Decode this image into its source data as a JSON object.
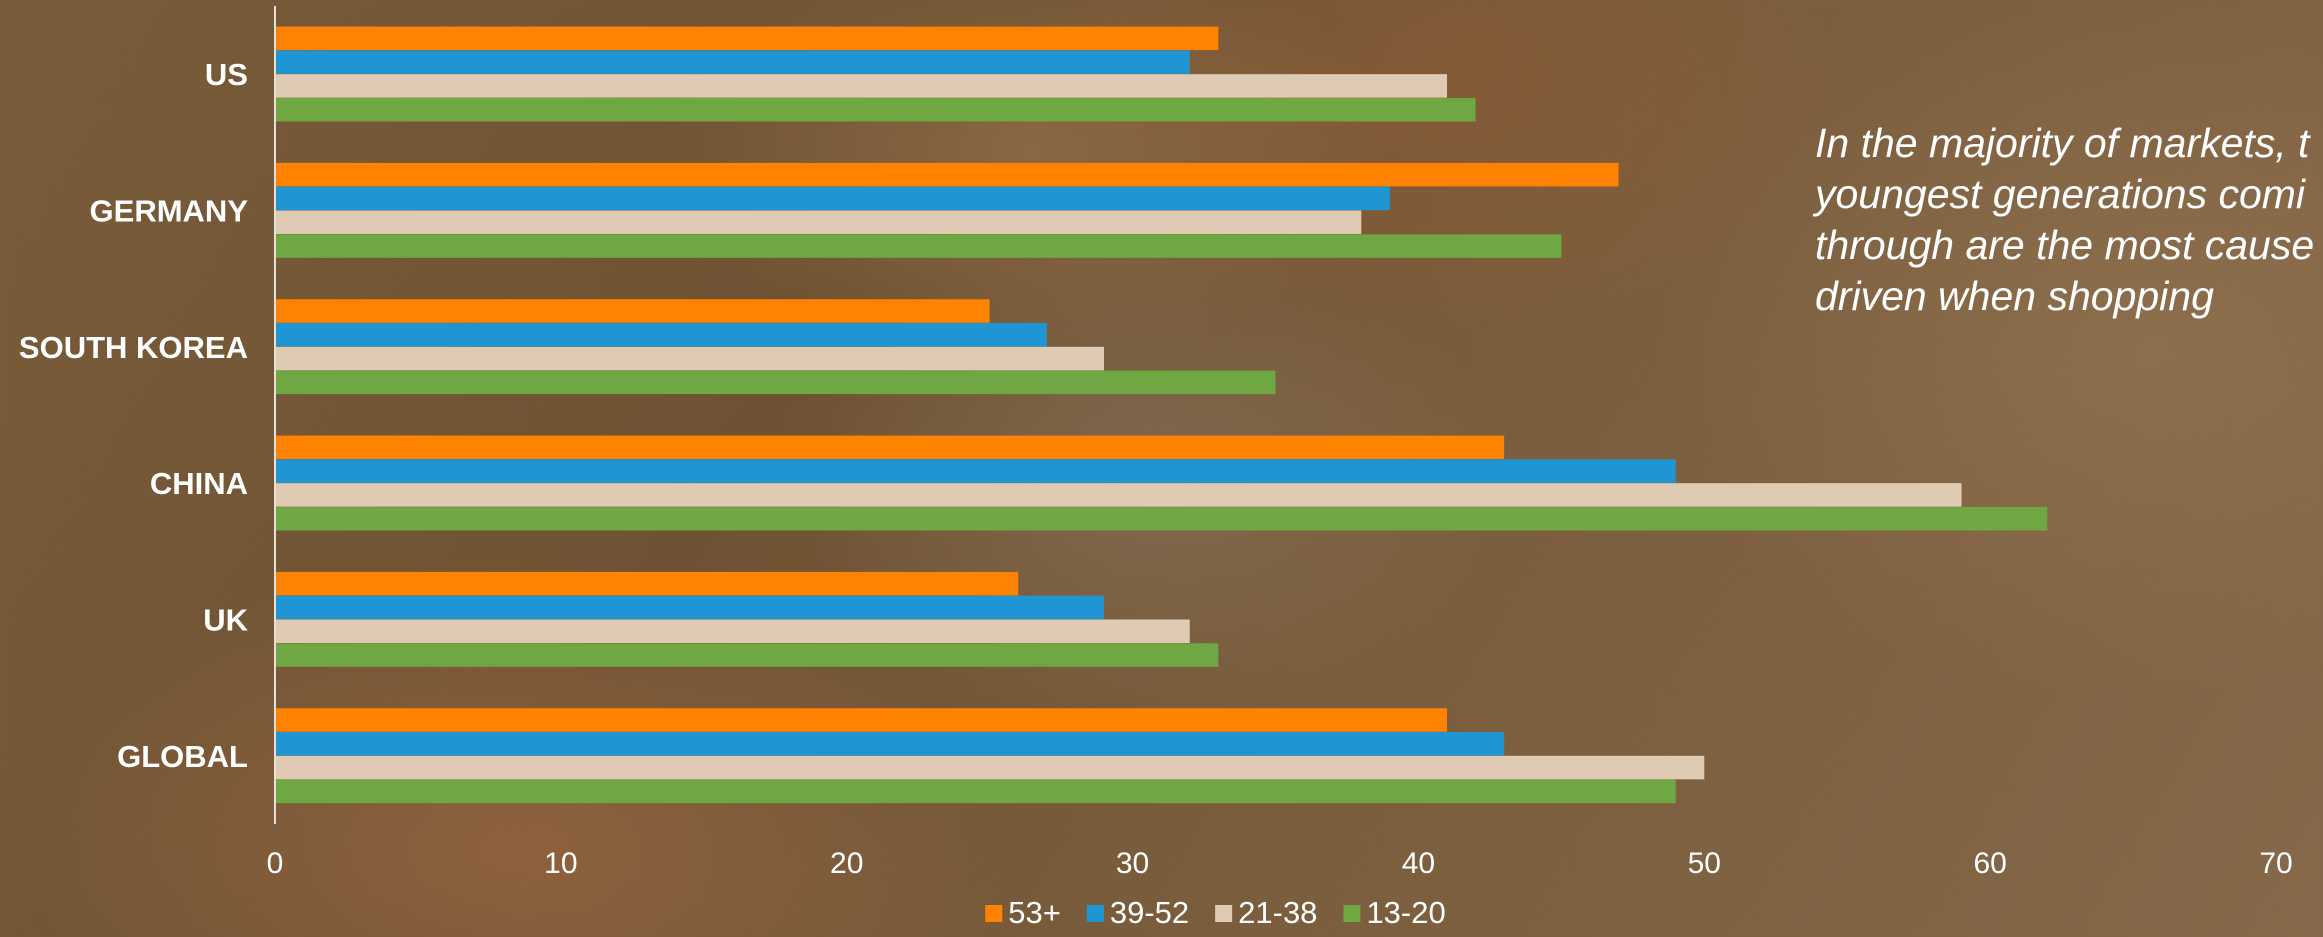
{
  "annotation": {
    "lines": [
      "In the majority of markets, t",
      "youngest generations comi",
      "through are the most cause",
      "driven when shopping"
    ]
  },
  "chart_data": {
    "type": "bar",
    "orientation": "horizontal",
    "categories": [
      "US",
      "GERMANY",
      "SOUTH KOREA",
      "CHINA",
      "UK",
      "GLOBAL"
    ],
    "series": [
      {
        "name": "53+",
        "color": "#ff8300",
        "values": [
          33,
          47,
          25,
          43,
          26,
          41
        ]
      },
      {
        "name": "39-52",
        "color": "#1f96d3",
        "values": [
          32,
          39,
          27,
          49,
          29,
          43
        ]
      },
      {
        "name": "21-38",
        "color": "#dfcbb4",
        "values": [
          41,
          38,
          29,
          59,
          32,
          50
        ]
      },
      {
        "name": "13-20",
        "color": "#6fa843",
        "values": [
          42,
          45,
          35,
          62,
          33,
          49
        ]
      }
    ],
    "xlim": [
      0,
      70
    ],
    "xticks": [
      0,
      10,
      20,
      30,
      40,
      50,
      60,
      70
    ],
    "grid": false,
    "legend_position": "bottom-center",
    "title": "",
    "xlabel": "",
    "ylabel": ""
  }
}
